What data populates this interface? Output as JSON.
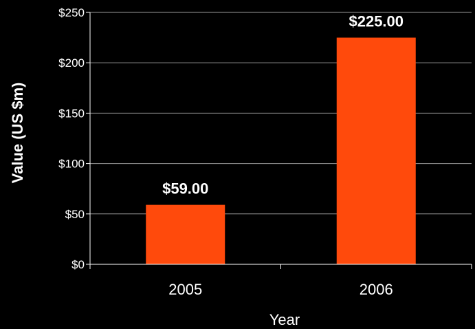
{
  "chart_data": {
    "type": "bar",
    "categories": [
      "2005",
      "2006"
    ],
    "values": [
      59,
      225
    ],
    "data_labels": [
      "$59.00",
      "$225.00"
    ],
    "xlabel": "Year",
    "ylabel": "Value (US $m)",
    "ylim": [
      0,
      250
    ],
    "y_ticks": [
      0,
      50,
      100,
      150,
      200,
      250
    ],
    "y_tick_labels": [
      "$0",
      "$50",
      "$100",
      "$150",
      "$200",
      "$250"
    ],
    "grid": true,
    "legend": "none",
    "colors": {
      "background": "#000000",
      "bar": "#ff4a0c",
      "text": "#ffffff",
      "gridline": "#9a9a9a",
      "axis": "#ffffff"
    }
  }
}
